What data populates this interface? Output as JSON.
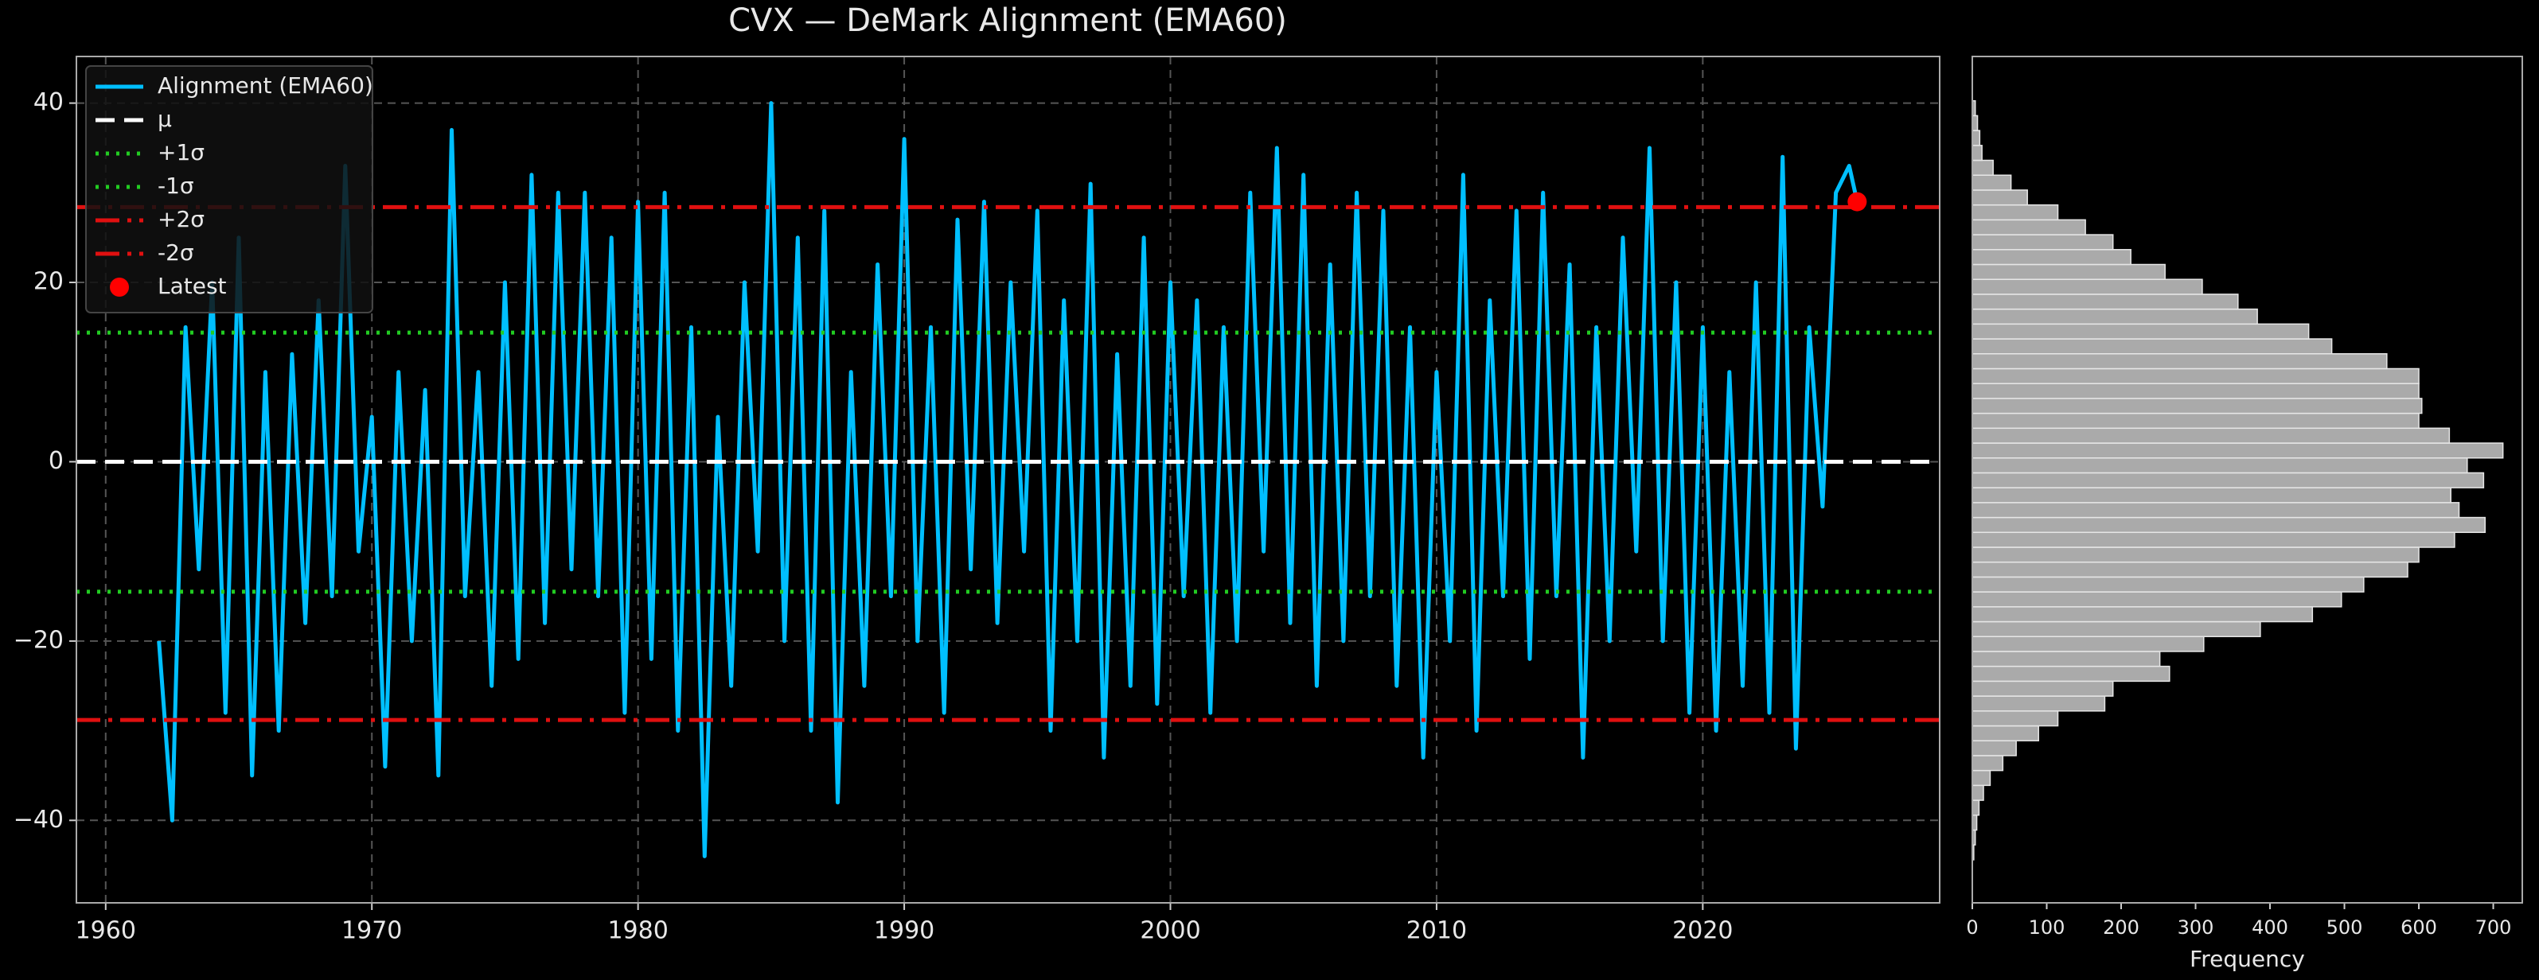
{
  "chart_data": [
    {
      "type": "line",
      "title": "CVX — DeMark Alignment (EMA60)",
      "x": [
        1962.0,
        1962.5,
        1963.0,
        1963.5,
        1964.0,
        1964.5,
        1965.0,
        1965.5,
        1966.0,
        1966.5,
        1967.0,
        1967.5,
        1968.0,
        1968.5,
        1969.0,
        1969.5,
        1970.0,
        1970.5,
        1971.0,
        1971.5,
        1972.0,
        1972.5,
        1973.0,
        1973.5,
        1974.0,
        1974.5,
        1975.0,
        1975.5,
        1976.0,
        1976.5,
        1977.0,
        1977.5,
        1978.0,
        1978.5,
        1979.0,
        1979.5,
        1980.0,
        1980.5,
        1981.0,
        1981.5,
        1982.0,
        1982.5,
        1983.0,
        1983.5,
        1984.0,
        1984.5,
        1985.0,
        1985.5,
        1986.0,
        1986.5,
        1987.0,
        1987.5,
        1988.0,
        1988.5,
        1989.0,
        1989.5,
        1990.0,
        1990.5,
        1991.0,
        1991.5,
        1992.0,
        1992.5,
        1993.0,
        1993.5,
        1994.0,
        1994.5,
        1995.0,
        1995.5,
        1996.0,
        1996.5,
        1997.0,
        1997.5,
        1998.0,
        1998.5,
        1999.0,
        1999.5,
        2000.0,
        2000.5,
        2001.0,
        2001.5,
        2002.0,
        2002.5,
        2003.0,
        2003.5,
        2004.0,
        2004.5,
        2005.0,
        2005.5,
        2006.0,
        2006.5,
        2007.0,
        2007.5,
        2008.0,
        2008.5,
        2009.0,
        2009.5,
        2010.0,
        2010.5,
        2011.0,
        2011.5,
        2012.0,
        2012.5,
        2013.0,
        2013.5,
        2014.0,
        2014.5,
        2015.0,
        2015.5,
        2016.0,
        2016.5,
        2017.0,
        2017.5,
        2018.0,
        2018.5,
        2019.0,
        2019.5,
        2020.0,
        2020.5,
        2021.0,
        2021.5,
        2022.0,
        2022.5,
        2023.0,
        2023.5,
        2024.0,
        2024.5,
        2025.0,
        2025.5,
        2025.8
      ],
      "series": [
        {
          "name": "Alignment (EMA60)",
          "color": "#00bfff",
          "values": [
            -20,
            -40,
            15,
            -12,
            20,
            -28,
            25,
            -35,
            10,
            -30,
            12,
            -18,
            18,
            -15,
            33,
            -10,
            5,
            -34,
            10,
            -20,
            8,
            -35,
            37,
            -15,
            10,
            -25,
            20,
            -22,
            32,
            -18,
            30,
            -12,
            30,
            -15,
            25,
            -28,
            29,
            -22,
            30,
            -30,
            15,
            -44,
            5,
            -25,
            20,
            -10,
            40,
            -20,
            25,
            -30,
            28,
            -38,
            10,
            -25,
            22,
            -15,
            36,
            -20,
            15,
            -28,
            27,
            -12,
            29,
            -18,
            20,
            -10,
            28,
            -30,
            18,
            -20,
            31,
            -33,
            12,
            -25,
            25,
            -27,
            20,
            -15,
            18,
            -28,
            15,
            -20,
            30,
            -10,
            35,
            -18,
            32,
            -25,
            22,
            -20,
            30,
            -15,
            28,
            -25,
            15,
            -33,
            10,
            -20,
            32,
            -30,
            18,
            -15,
            28,
            -22,
            30,
            -15,
            22,
            -33,
            15,
            -20,
            25,
            -10,
            35,
            -20,
            20,
            -28,
            15,
            -30,
            10,
            -25,
            20,
            -28,
            34,
            -32,
            15,
            -5,
            30,
            33,
            29
          ]
        }
      ],
      "reference_lines": [
        {
          "name": "μ",
          "value": 0,
          "color": "#ffffff",
          "style": "dashed"
        },
        {
          "name": "+1σ",
          "value": 14.4,
          "color": "#22cc22",
          "style": "dotted"
        },
        {
          "name": "-1σ",
          "value": -14.5,
          "color": "#22cc22",
          "style": "dotted"
        },
        {
          "name": "+2σ",
          "value": 28.4,
          "color": "#e01010",
          "style": "dashdot"
        },
        {
          "name": "-2σ",
          "value": -28.8,
          "color": "#e01010",
          "style": "dashdot"
        }
      ],
      "latest": {
        "name": "Latest",
        "x": 2025.8,
        "y": 29,
        "color": "#ff0000"
      },
      "xlim": [
        1958.9,
        2028.9
      ],
      "ylim": [
        -49.2,
        45.2
      ],
      "xticks": [
        1960,
        1970,
        1980,
        1990,
        2000,
        2010,
        2020
      ],
      "yticks": [
        {
          "value": -40,
          "label": "−40"
        },
        {
          "value": -20,
          "label": "−20"
        },
        0,
        20,
        40
      ],
      "grid": true,
      "legend": "upper left"
    },
    {
      "type": "histogram",
      "orientation": "horizontal",
      "color": "#aaaaaa",
      "bins": [
        -44.4,
        -42.74,
        -41.08,
        -39.42,
        -37.76,
        -36.1,
        -34.44,
        -32.78,
        -31.12,
        -29.46,
        -27.8,
        -26.14,
        -24.48,
        -22.82,
        -21.16,
        -19.5,
        -17.84,
        -16.18,
        -14.52,
        -12.86,
        -11.2,
        -9.54,
        -7.88,
        -6.22,
        -4.56,
        -2.9,
        -1.24,
        0.42,
        2.08,
        3.74,
        5.4,
        7.06,
        8.72,
        10.38,
        12.04,
        13.7,
        15.36,
        17.02,
        18.68,
        20.34,
        22.0,
        23.66,
        25.32,
        26.98,
        28.64,
        30.3,
        31.96,
        33.62,
        35.28,
        36.94,
        38.6,
        40.26
      ],
      "counts": [
        2,
        4,
        6,
        9,
        15,
        24,
        41,
        59,
        89,
        115,
        178,
        189,
        265,
        252,
        311,
        387,
        457,
        496,
        526,
        585,
        600,
        648,
        689,
        654,
        643,
        687,
        665,
        713,
        641,
        600,
        604,
        600,
        600,
        557,
        483,
        452,
        383,
        357,
        309,
        259,
        213,
        189,
        152,
        115,
        74,
        52,
        28,
        13,
        10,
        7,
        4
      ],
      "xlabel": "Frequency",
      "xlim": [
        0,
        739
      ],
      "ylim": [
        -49.2,
        45.2
      ],
      "xticks": [
        0,
        100,
        200,
        300,
        400,
        500,
        600,
        700
      ]
    }
  ]
}
